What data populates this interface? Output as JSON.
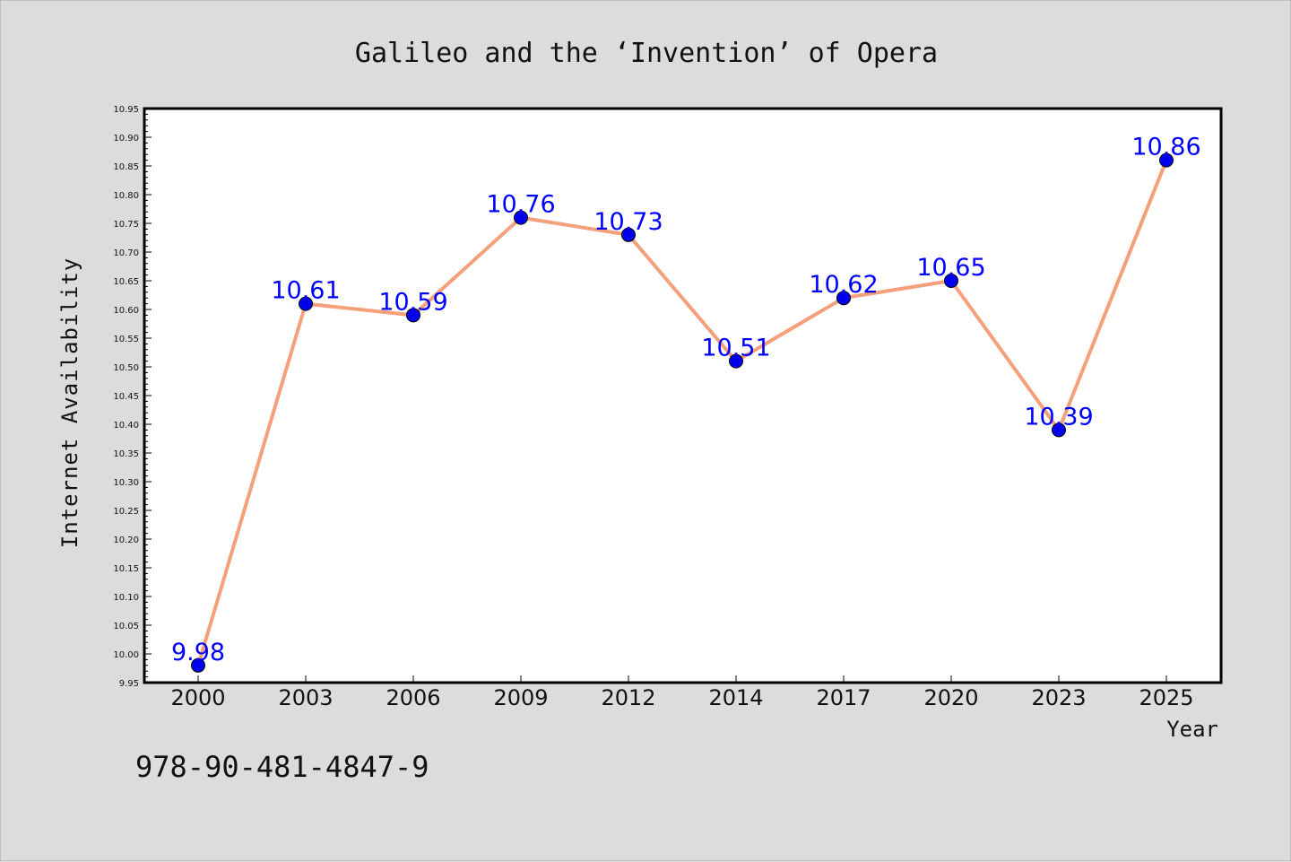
{
  "chart_data": {
    "type": "line",
    "title": "Galileo and the ‘Invention’ of Opera",
    "xlabel": "Year",
    "ylabel": "Internet Availability",
    "categories": [
      "2000",
      "2003",
      "2006",
      "2009",
      "2012",
      "2014",
      "2017",
      "2020",
      "2023",
      "2025"
    ],
    "series": [
      {
        "values": [
          9.98,
          10.61,
          10.59,
          10.76,
          10.73,
          10.51,
          10.62,
          10.65,
          10.39,
          10.86
        ],
        "data_labels": [
          "9.98",
          "10.61",
          "10.59",
          "10.76",
          "10.73",
          "10.51",
          "10.62",
          "10.65",
          "10.39",
          "10.86"
        ],
        "line_color": "#f4a07a",
        "marker_color": "#0000ee"
      }
    ],
    "ylim": [
      9.95,
      10.95
    ],
    "yticks": [
      "9.95",
      "10.00",
      "10.05",
      "10.10",
      "10.15",
      "10.20",
      "10.25",
      "10.30",
      "10.35",
      "10.40",
      "10.45",
      "10.50",
      "10.55",
      "10.60",
      "10.65",
      "10.70",
      "10.75",
      "10.80",
      "10.85",
      "10.90",
      "10.95"
    ],
    "grid": false,
    "legend": "none"
  },
  "footer": {
    "isbn": "978-90-481-4847-9"
  },
  "colors": {
    "background": "#dcdcdc",
    "plot_background": "#ffffff",
    "label_color": "#0000ff"
  }
}
